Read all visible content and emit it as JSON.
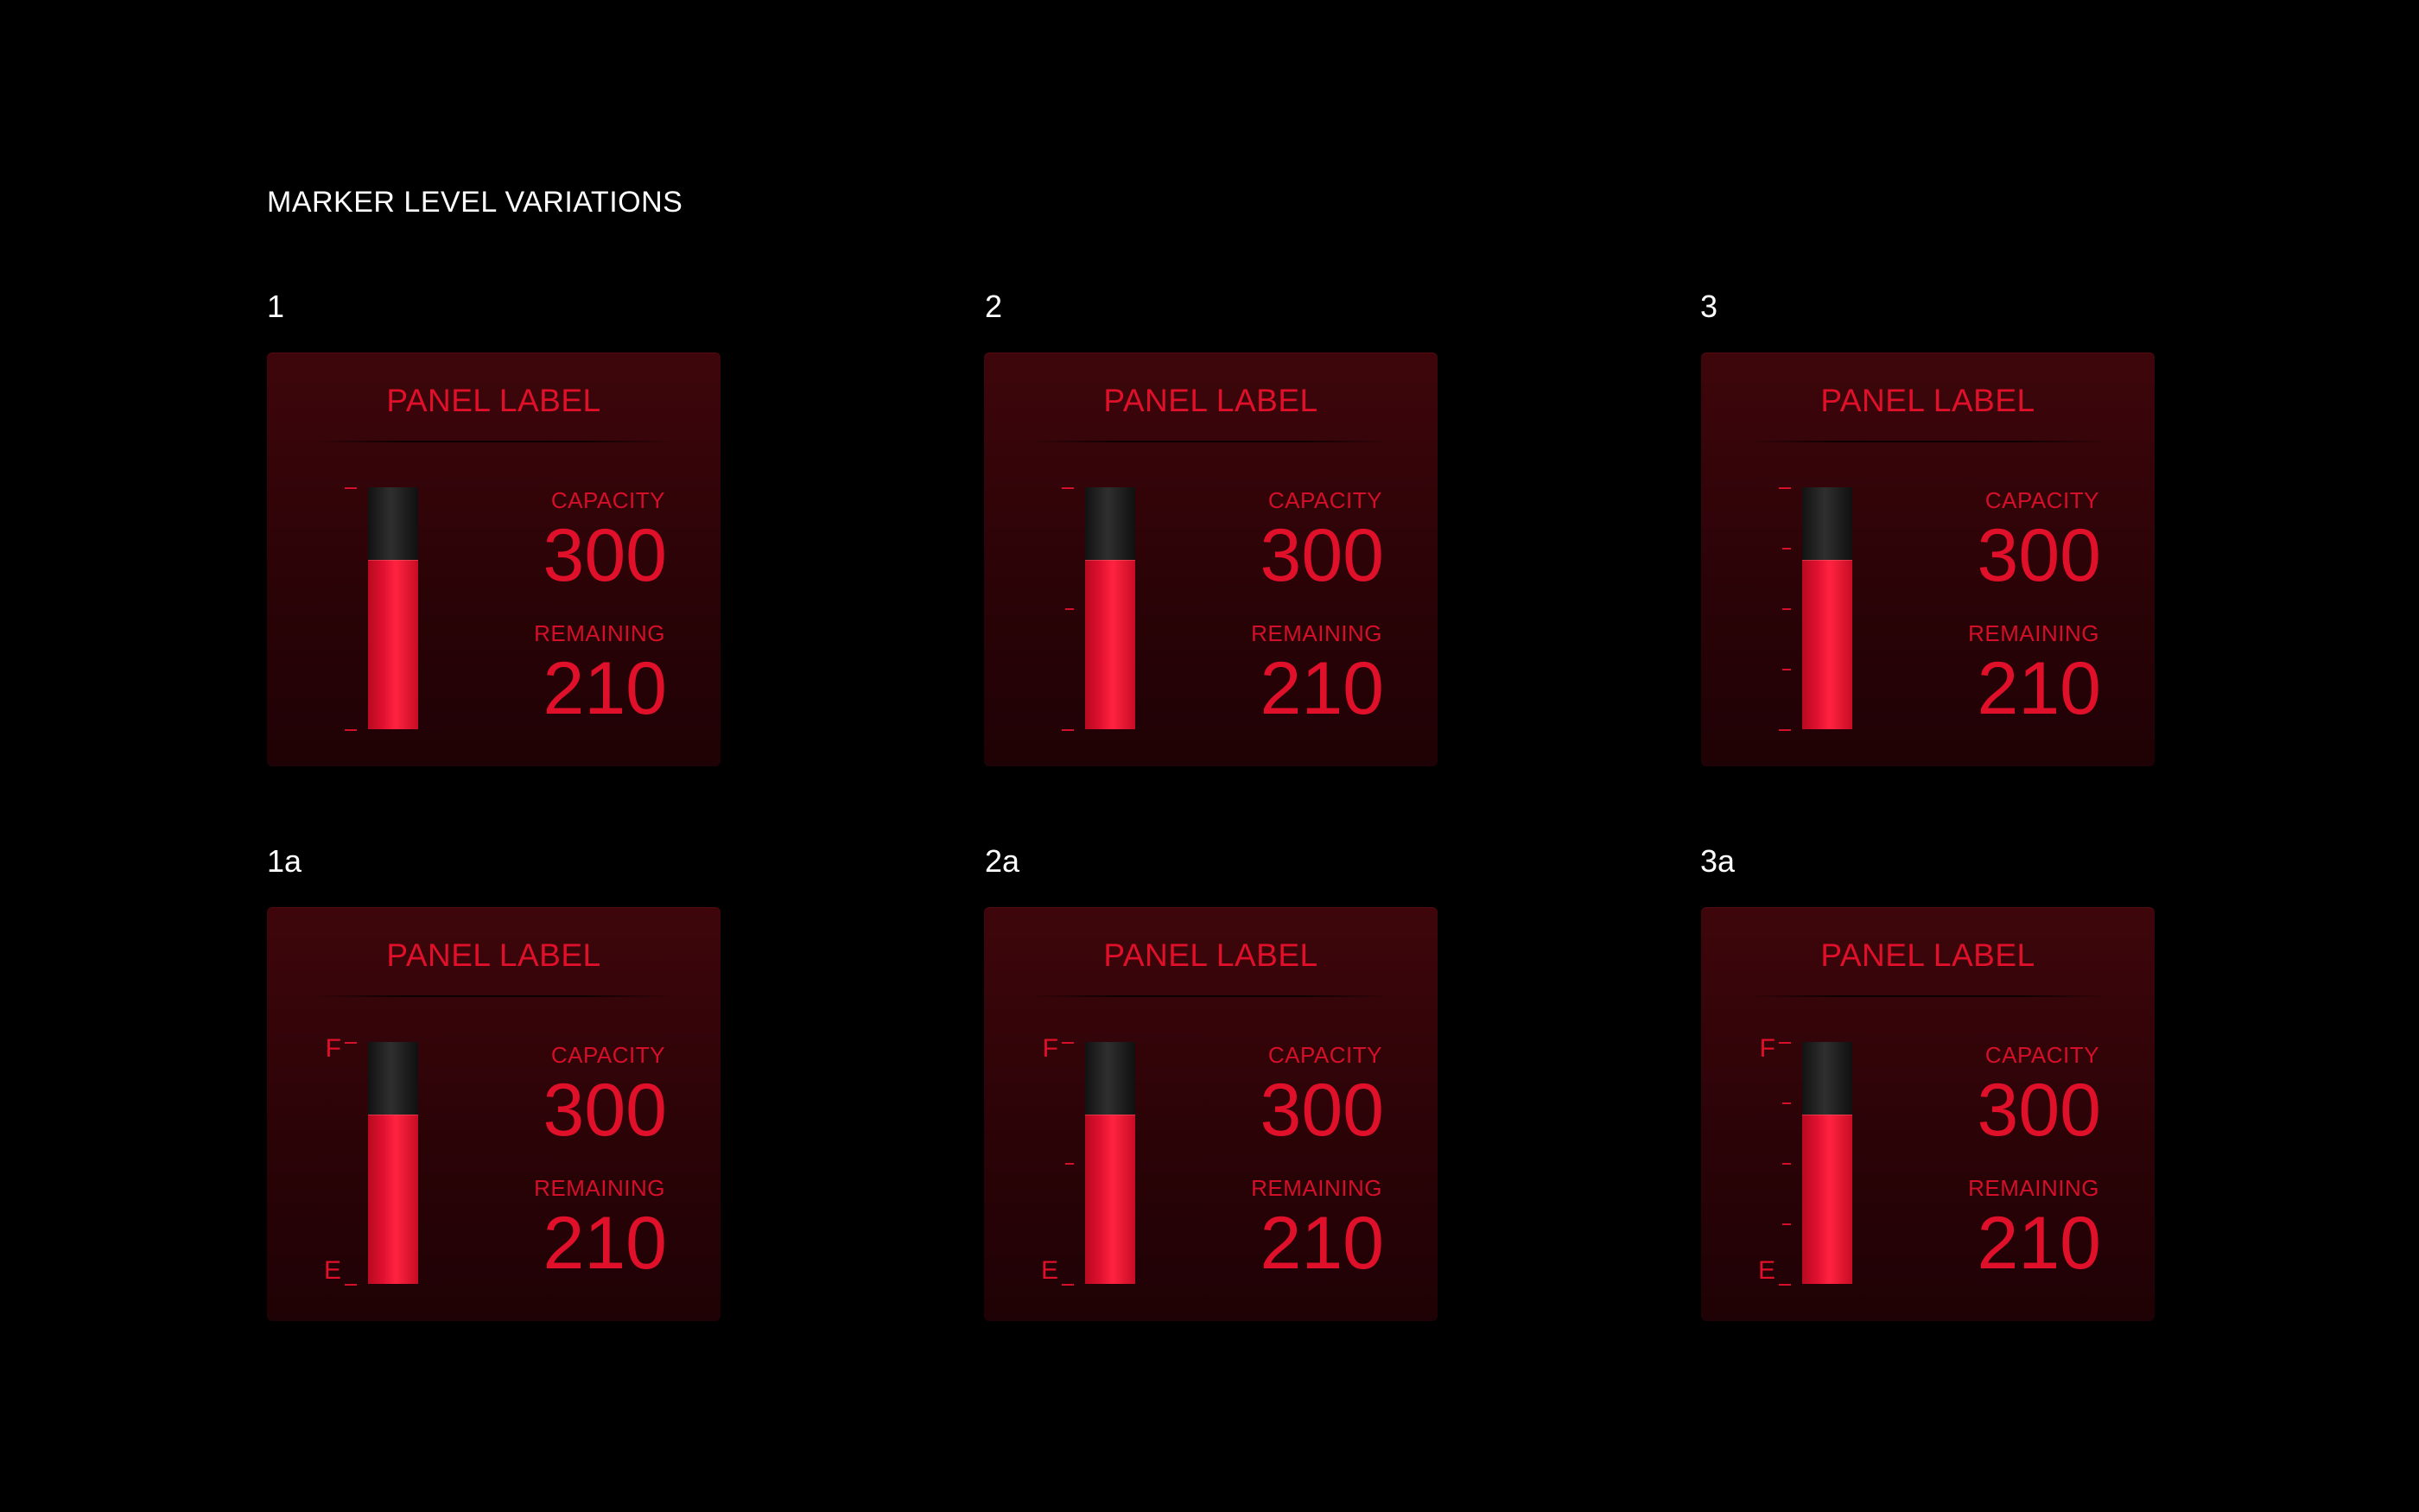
{
  "page": {
    "title": "MARKER LEVEL VARIATIONS"
  },
  "colors": {
    "background": "#000000",
    "panel": "#2b0307",
    "accent": "#e0102a",
    "tube_empty": "#1a1a1a"
  },
  "panels": [
    {
      "variant": "1",
      "title": "PANEL LABEL",
      "capacity_label": "CAPACITY",
      "capacity_value": "300",
      "remaining_label": "REMAINING",
      "remaining_value": "210",
      "marker_count": 2,
      "full_label": "",
      "empty_label": ""
    },
    {
      "variant": "2",
      "title": "PANEL LABEL",
      "capacity_label": "CAPACITY",
      "capacity_value": "300",
      "remaining_label": "REMAINING",
      "remaining_value": "210",
      "marker_count": 3,
      "full_label": "",
      "empty_label": ""
    },
    {
      "variant": "3",
      "title": "PANEL LABEL",
      "capacity_label": "CAPACITY",
      "capacity_value": "300",
      "remaining_label": "REMAINING",
      "remaining_value": "210",
      "marker_count": 5,
      "full_label": "",
      "empty_label": ""
    },
    {
      "variant": "1a",
      "title": "PANEL LABEL",
      "capacity_label": "CAPACITY",
      "capacity_value": "300",
      "remaining_label": "REMAINING",
      "remaining_value": "210",
      "marker_count": 2,
      "full_label": "F",
      "empty_label": "E"
    },
    {
      "variant": "2a",
      "title": "PANEL LABEL",
      "capacity_label": "CAPACITY",
      "capacity_value": "300",
      "remaining_label": "REMAINING",
      "remaining_value": "210",
      "marker_count": 3,
      "full_label": "F",
      "empty_label": "E"
    },
    {
      "variant": "3a",
      "title": "PANEL LABEL",
      "capacity_label": "CAPACITY",
      "capacity_value": "300",
      "remaining_label": "REMAINING",
      "remaining_value": "210",
      "marker_count": 5,
      "full_label": "F",
      "empty_label": "E"
    }
  ]
}
